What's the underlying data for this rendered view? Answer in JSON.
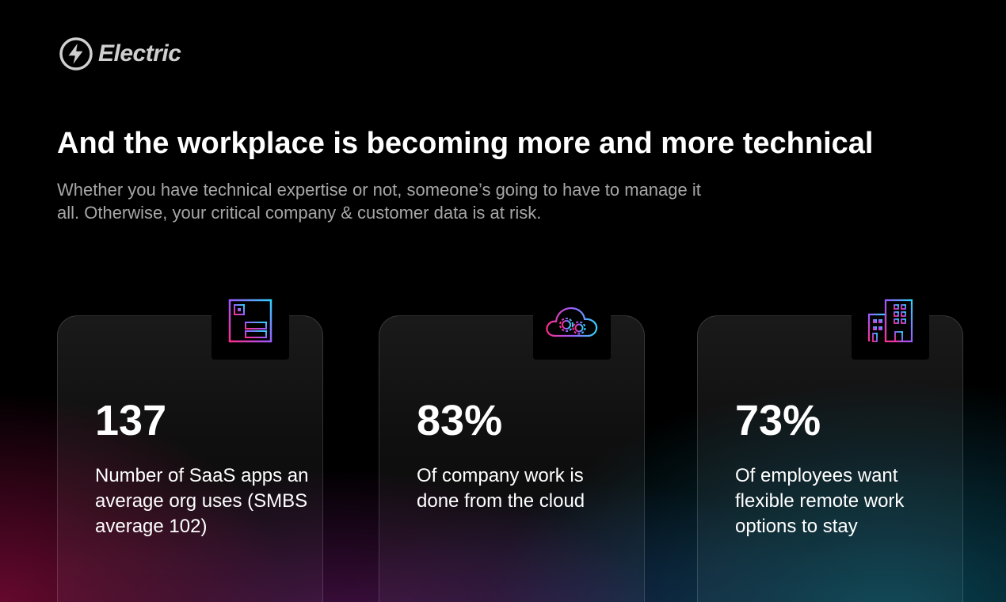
{
  "brand": {
    "name": "Electric",
    "icon": "lightning-bolt-icon"
  },
  "header": {
    "title": "And the workplace is becoming more and more technical",
    "subtitle": "Whether you have technical expertise or not, someone’s going to have to manage it all. Otherwise, your critical company & customer data is at risk."
  },
  "stats": [
    {
      "value": "137",
      "label": "Number of SaaS apps an average org uses (SMBS average 102)",
      "icon": "app-window-icon"
    },
    {
      "value": "83%",
      "label": "Of company work is done from the cloud",
      "icon": "cloud-gears-icon"
    },
    {
      "value": "73%",
      "label": "Of employees want flexible remote work options to stay",
      "icon": "office-building-icon"
    }
  ],
  "colors": {
    "gradient_pink": "#ff2d8a",
    "gradient_purple": "#9b5cff",
    "gradient_cyan": "#2fd3ff"
  }
}
